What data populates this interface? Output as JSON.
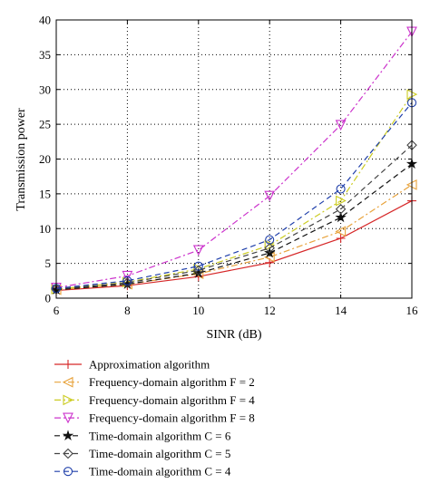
{
  "chart_data": {
    "type": "line",
    "xlabel": "SINR (dB)",
    "ylabel": "Transmission power",
    "x": [
      6,
      8,
      10,
      12,
      14,
      16
    ],
    "xlim": [
      6,
      16
    ],
    "ylim": [
      0,
      40
    ],
    "xticks": [
      "6",
      "8",
      "10",
      "12",
      "14",
      "16"
    ],
    "yticks": [
      "0",
      "5",
      "10",
      "15",
      "20",
      "25",
      "30",
      "35",
      "40"
    ],
    "grid": true,
    "legend_position": "below plot",
    "series": [
      {
        "name": "Approximation algorithm",
        "color": "#d62728",
        "marker": "plus",
        "dash": "solid",
        "values": [
          1.1,
          1.8,
          3.1,
          5.1,
          8.6,
          14.0
        ]
      },
      {
        "name": "Frequency-domain algorithm F = 2",
        "color": "#e8a33c",
        "marker": "triangle-left",
        "dash": "dashdot",
        "values": [
          1.2,
          2.0,
          3.5,
          5.9,
          9.6,
          16.3
        ]
      },
      {
        "name": "Frequency-domain algorithm F = 4",
        "color": "#cccc22",
        "marker": "triangle-right",
        "dash": "dashdot",
        "values": [
          1.3,
          2.3,
          4.2,
          7.6,
          14.0,
          29.3
        ]
      },
      {
        "name": "Frequency-domain algorithm F = 8",
        "color": "#cc33cc",
        "marker": "triangle-down",
        "dash": "dashdot",
        "values": [
          1.5,
          3.2,
          6.9,
          14.7,
          24.9,
          38.3
        ]
      },
      {
        "name": "Time-domain algorithm C = 6",
        "color": "#111111",
        "marker": "star",
        "dash": "dashed",
        "values": [
          1.2,
          2.0,
          3.6,
          6.5,
          11.6,
          19.3
        ]
      },
      {
        "name": "Time-domain algorithm C = 5",
        "color": "#444444",
        "marker": "diamond",
        "dash": "dashed",
        "values": [
          1.3,
          2.2,
          4.0,
          7.2,
          12.8,
          22.0
        ]
      },
      {
        "name": "Time-domain algorithm C = 4",
        "color": "#1f3faa",
        "marker": "circle",
        "dash": "dashed",
        "values": [
          1.4,
          2.5,
          4.6,
          8.4,
          15.7,
          28.1
        ]
      }
    ]
  }
}
